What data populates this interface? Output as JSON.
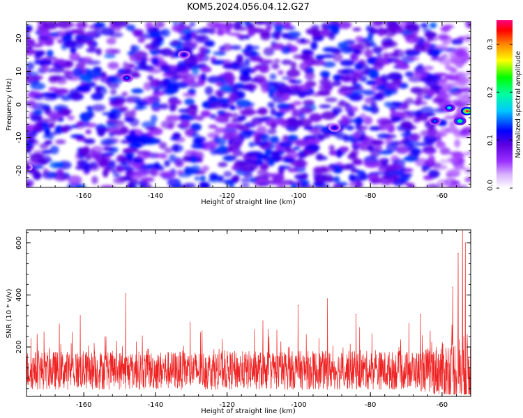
{
  "title": "KOM5.2024.056.04.12.G27",
  "chart_data": [
    {
      "type": "heatmap",
      "xlabel": "Height of straight line (km)",
      "ylabel": "Frequency (Hz)",
      "xlim": [
        -176,
        -52
      ],
      "ylim": [
        -25,
        25
      ],
      "xticks": [
        "-160",
        "-140",
        "-120",
        "-100",
        "-80",
        "-60"
      ],
      "yticks": [
        "-20",
        "-10",
        "0",
        "10",
        "20"
      ],
      "colorbar": {
        "label": "Normalized spectral amplitude",
        "ticks": [
          "0.0",
          "0.1",
          "0.2",
          "0.3"
        ],
        "range": [
          0,
          0.35
        ],
        "colors": [
          "#ffffff",
          "#9b30ff",
          "#5a00e0",
          "#0000ff",
          "#00ffff",
          "#00ff00",
          "#ffff00",
          "#ff8000",
          "#ff0000",
          "#ff0080"
        ]
      },
      "hotspots": [
        {
          "x": -53,
          "y": -2,
          "value": 0.34
        },
        {
          "x": -55,
          "y": -5,
          "value": 0.22
        },
        {
          "x": -58,
          "y": -1,
          "value": 0.18
        },
        {
          "x": -62,
          "y": -5,
          "value": 0.14
        },
        {
          "x": -90,
          "y": -7,
          "value": 0.12
        },
        {
          "x": -148,
          "y": 8,
          "value": 0.14
        },
        {
          "x": -132,
          "y": 15,
          "value": 0.12
        },
        {
          "x": -176,
          "y": -19,
          "value": 0.11
        }
      ]
    },
    {
      "type": "line",
      "xlabel": "Height of straight line (km)",
      "ylabel": "SNR (10 * v/v)",
      "xlim": [
        -176,
        -52
      ],
      "ylim": [
        10,
        650
      ],
      "xticks": [
        "-160",
        "-140",
        "-120",
        "-100",
        "-80",
        "-60"
      ],
      "yticks": [
        "200",
        "400",
        "600"
      ],
      "color": "#ee2222",
      "baseline_mean": 110,
      "baseline_spread": 75,
      "peaks": [
        {
          "x": -148.3,
          "y": 405
        },
        {
          "x": -161,
          "y": 320
        },
        {
          "x": -110,
          "y": 300
        },
        {
          "x": -92,
          "y": 385
        },
        {
          "x": -100.2,
          "y": 360
        },
        {
          "x": -84,
          "y": 325
        },
        {
          "x": -66,
          "y": 325
        },
        {
          "x": -57,
          "y": 430
        },
        {
          "x": -55.5,
          "y": 560
        },
        {
          "x": -54.3,
          "y": 650
        },
        {
          "x": -53.5,
          "y": 600
        }
      ]
    }
  ]
}
